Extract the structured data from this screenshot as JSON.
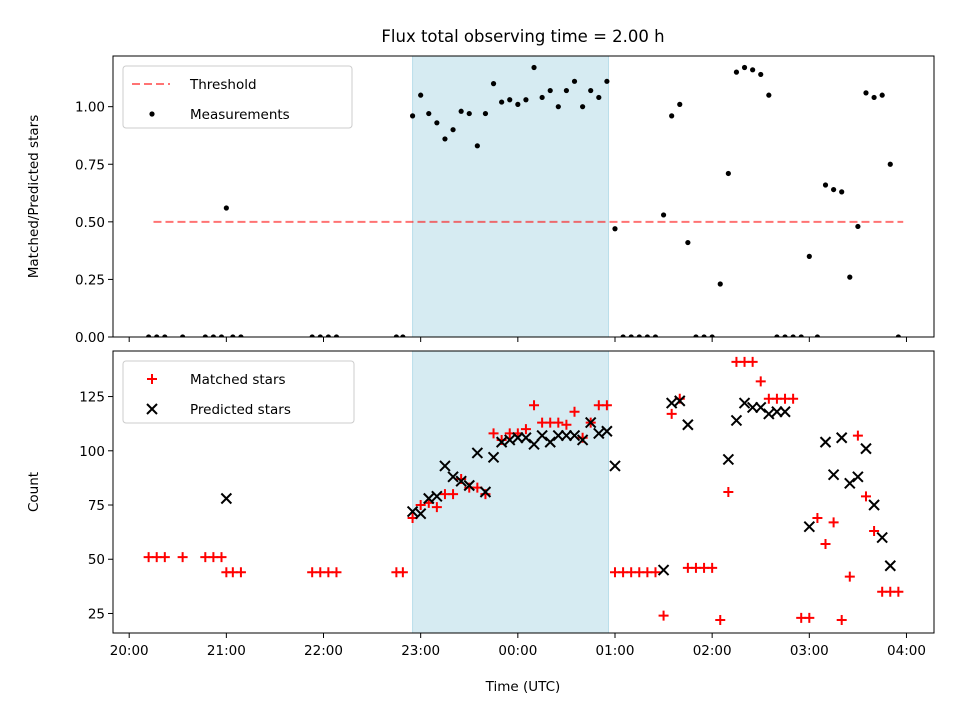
{
  "title": "Flux total observing time = 2.00 h",
  "xlabel": "Time (UTC)",
  "x_ticks": [
    "20:00",
    "21:00",
    "22:00",
    "23:00",
    "00:00",
    "01:00",
    "02:00",
    "03:00",
    "04:00"
  ],
  "colors": {
    "highlight": "#add8e6",
    "threshold": "#ff0000",
    "measurements": "#000000",
    "matched": "#ff0000",
    "predicted": "#000000"
  },
  "chart_data": [
    {
      "type": "scatter",
      "ylabel": "Matched/Predicted stars",
      "ylim": [
        0,
        1.22
      ],
      "y_ticks": [
        "0.00",
        "0.25",
        "0.50",
        "0.75",
        "1.00"
      ],
      "xlim_hours": [
        "19:50",
        "04:17"
      ],
      "highlight_span": [
        "22:55",
        "00:56"
      ],
      "legend": {
        "position": "upper-left",
        "entries": [
          "Threshold",
          "Measurements"
        ]
      },
      "threshold": {
        "name": "Threshold",
        "value": 0.5,
        "x_range": [
          "20:15",
          "03:58"
        ]
      },
      "series": [
        {
          "name": "Measurements",
          "x": [
            "20:12",
            "20:17",
            "20:22",
            "20:33",
            "20:47",
            "20:52",
            "20:57",
            "21:00",
            "21:04",
            "21:09",
            "21:53",
            "21:58",
            "22:03",
            "22:08",
            "22:45",
            "22:49",
            "22:55",
            "23:00",
            "23:05",
            "23:10",
            "23:15",
            "23:20",
            "23:25",
            "23:30",
            "23:35",
            "23:40",
            "23:45",
            "23:50",
            "23:55",
            "00:00",
            "00:05",
            "00:10",
            "00:15",
            "00:20",
            "00:25",
            "00:30",
            "00:35",
            "00:40",
            "00:45",
            "00:50",
            "00:55",
            "01:00",
            "01:05",
            "01:10",
            "01:15",
            "01:20",
            "01:25",
            "01:30",
            "01:35",
            "01:40",
            "01:45",
            "01:50",
            "01:55",
            "02:00",
            "02:05",
            "02:10",
            "02:15",
            "02:20",
            "02:25",
            "02:30",
            "02:35",
            "02:40",
            "02:45",
            "02:50",
            "02:55",
            "03:00",
            "03:05",
            "03:10",
            "03:15",
            "03:20",
            "03:25",
            "03:30",
            "03:35",
            "03:40",
            "03:45",
            "03:50",
            "03:55"
          ],
          "y": [
            0,
            0,
            0,
            0,
            0,
            0,
            0,
            0.56,
            0,
            0,
            0,
            0,
            0,
            0,
            0,
            0,
            0.96,
            1.05,
            0.97,
            0.93,
            0.86,
            0.9,
            0.98,
            0.97,
            0.83,
            0.97,
            1.1,
            1.02,
            1.03,
            1.01,
            1.03,
            1.17,
            1.04,
            1.07,
            1.0,
            1.07,
            1.11,
            1.0,
            1.07,
            1.04,
            1.11,
            0.47,
            0,
            0,
            0,
            0,
            0,
            0.53,
            0.96,
            1.01,
            0.41,
            0,
            0,
            0,
            0.23,
            0.71,
            1.15,
            1.17,
            1.16,
            1.14,
            1.05,
            0,
            0,
            0,
            0,
            0.35,
            0,
            0.66,
            0.64,
            0.63,
            0.26,
            0.48,
            1.06,
            1.04,
            1.05,
            0.75,
            0
          ]
        }
      ]
    },
    {
      "type": "scatter",
      "ylabel": "Count",
      "ylim": [
        16,
        146
      ],
      "y_ticks": [
        "25",
        "50",
        "75",
        "100",
        "125"
      ],
      "xlim_hours": [
        "19:50",
        "04:17"
      ],
      "highlight_span": [
        "22:55",
        "00:56"
      ],
      "legend": {
        "position": "upper-left",
        "entries": [
          "Matched stars",
          "Predicted stars"
        ]
      },
      "series": [
        {
          "name": "Matched stars",
          "marker": "+",
          "x": [
            "20:12",
            "20:17",
            "20:22",
            "20:33",
            "20:47",
            "20:52",
            "20:57",
            "21:00",
            "21:04",
            "21:09",
            "21:53",
            "21:58",
            "22:03",
            "22:08",
            "22:45",
            "22:49",
            "22:55",
            "23:00",
            "23:05",
            "23:10",
            "23:15",
            "23:20",
            "23:25",
            "23:30",
            "23:35",
            "23:40",
            "23:45",
            "23:50",
            "23:55",
            "00:00",
            "00:05",
            "00:10",
            "00:15",
            "00:20",
            "00:25",
            "00:30",
            "00:35",
            "00:40",
            "00:45",
            "00:50",
            "00:55",
            "01:00",
            "01:05",
            "01:10",
            "01:15",
            "01:20",
            "01:25",
            "01:30",
            "01:35",
            "01:40",
            "01:45",
            "01:50",
            "01:55",
            "02:00",
            "02:05",
            "02:10",
            "02:15",
            "02:20",
            "02:25",
            "02:30",
            "02:35",
            "02:40",
            "02:45",
            "02:50",
            "02:55",
            "03:00",
            "03:05",
            "03:10",
            "03:15",
            "03:20",
            "03:25",
            "03:30",
            "03:35",
            "03:40",
            "03:45",
            "03:50",
            "03:55"
          ],
          "y": [
            51,
            51,
            51,
            51,
            51,
            51,
            51,
            44,
            44,
            44,
            44,
            44,
            44,
            44,
            44,
            44,
            69,
            75,
            76,
            74,
            80,
            80,
            87,
            83,
            83,
            80,
            108,
            105,
            108,
            108,
            110,
            121,
            113,
            113,
            113,
            112,
            118,
            106,
            113,
            121,
            121,
            44,
            44,
            44,
            44,
            44,
            44,
            24,
            117,
            124,
            46,
            46,
            46,
            46,
            22,
            81,
            141,
            141,
            141,
            132,
            124,
            124,
            124,
            124,
            23,
            23,
            69,
            57,
            67,
            22,
            42,
            107,
            79,
            63,
            35,
            35,
            35
          ]
        },
        {
          "name": "Predicted stars",
          "marker": "x",
          "x": [
            "21:00",
            "22:55",
            "23:00",
            "23:05",
            "23:10",
            "23:15",
            "23:20",
            "23:25",
            "23:30",
            "23:35",
            "23:40",
            "23:45",
            "23:50",
            "23:55",
            "00:00",
            "00:05",
            "00:10",
            "00:15",
            "00:20",
            "00:25",
            "00:30",
            "00:35",
            "00:40",
            "00:45",
            "00:50",
            "00:55",
            "01:00",
            "01:30",
            "01:35",
            "01:40",
            "01:45",
            "02:10",
            "02:15",
            "02:20",
            "02:25",
            "02:30",
            "02:35",
            "02:40",
            "02:45",
            "03:00",
            "03:10",
            "03:15",
            "03:20",
            "03:25",
            "03:30",
            "03:35",
            "03:40",
            "03:45",
            "03:50"
          ],
          "y": [
            78,
            72,
            71,
            78,
            79,
            93,
            88,
            86,
            84,
            99,
            81,
            97,
            104,
            105,
            106,
            106,
            103,
            107,
            104,
            107,
            107,
            107,
            105,
            113,
            108,
            109,
            93,
            45,
            122,
            123,
            112,
            96,
            114,
            122,
            120,
            120,
            117,
            118,
            118,
            65,
            104,
            89,
            106,
            85,
            88,
            101,
            75,
            60,
            47
          ]
        }
      ]
    }
  ]
}
